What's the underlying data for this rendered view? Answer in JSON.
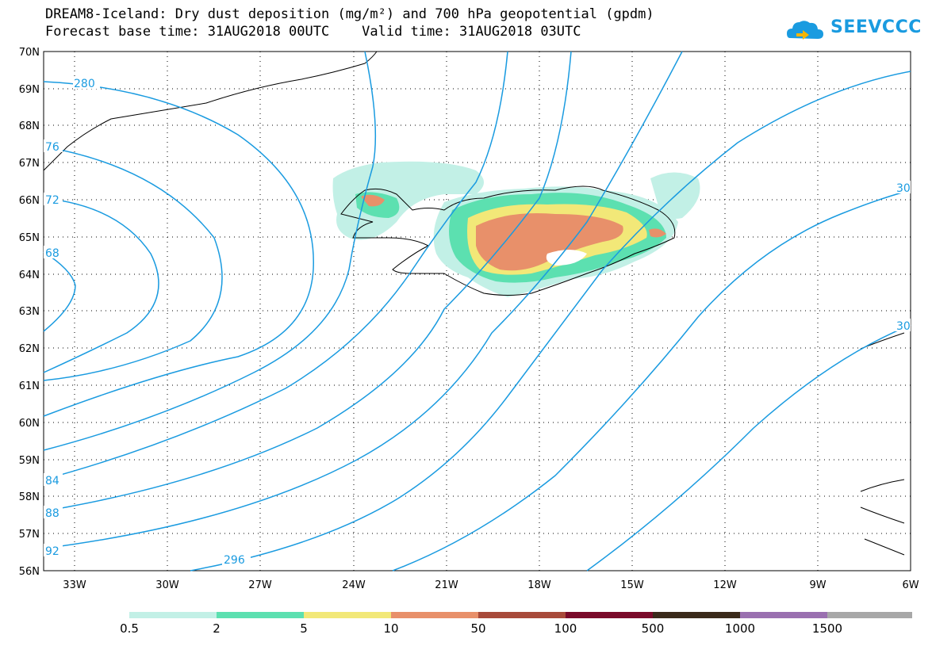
{
  "header": {
    "title_line1": "DREAM8-Iceland: Dry dust deposition (mg/m²) and 700 hPa geopotential (gpdm)",
    "title_line2": "Forecast base time: 31AUG2018 00UTC    Valid time: 31AUG2018 03UTC"
  },
  "logo": {
    "text": "SEEVCCC",
    "icon": "cloud-logo-icon",
    "color": "#1a9be0"
  },
  "map": {
    "lon_range": [
      -34.5,
      -6
    ],
    "lat_range": [
      56,
      70
    ],
    "lon_ticks": [
      "33W",
      "30W",
      "27W",
      "24W",
      "21W",
      "18W",
      "15W",
      "12W",
      "9W",
      "6W"
    ],
    "lat_ticks": [
      "70N",
      "69N",
      "68N",
      "67N",
      "66N",
      "65N",
      "64N",
      "63N",
      "62N",
      "61N",
      "60N",
      "59N",
      "58N",
      "57N",
      "56N"
    ],
    "contour_color": "#1a9be0",
    "contour_labels": [
      "280",
      "76",
      "72",
      "68",
      "84",
      "88",
      "92",
      "296",
      "30",
      "30"
    ]
  },
  "legend": {
    "colors": [
      "#c2f0e6",
      "#5ce0b0",
      "#f2e878",
      "#e8906a",
      "#a84a3a",
      "#7a0a2a",
      "#3a2a1a",
      "#9a70b0",
      "#a8a8a8"
    ],
    "labels": [
      "0.5",
      "2",
      "5",
      "10",
      "50",
      "100",
      "500",
      "1000",
      "1500"
    ]
  }
}
